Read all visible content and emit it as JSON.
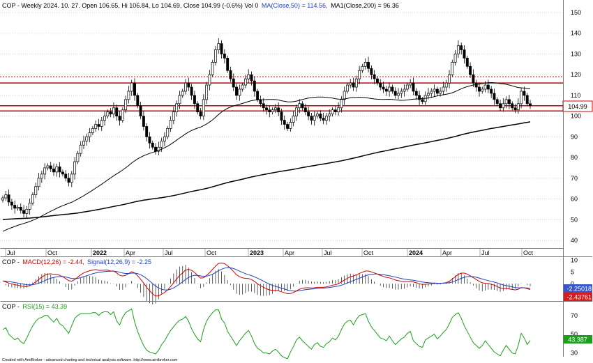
{
  "chart_data": [
    {
      "type": "candlestick",
      "title": "COP - Weekly 2024. 10. 27. Open 106.65, Hi 106.84, Lo 104.69, Close 104.99 (-0.6%) Vol 0",
      "ma50_label": "MA(Close,50) = 114.56,",
      "ma200_label": "MA1(Close,200) = 96.36",
      "last_price_label": "104.99",
      "ylim": [
        36,
        155
      ],
      "y_ticks": [
        "150",
        "140",
        "130",
        "120",
        "110",
        "100",
        "90",
        "80",
        "70",
        "60",
        "50",
        "40"
      ],
      "x_tick_labels": [
        {
          "label": "Jul",
          "bold": false
        },
        {
          "label": "Oct",
          "bold": false
        },
        {
          "label": "2022",
          "bold": true
        },
        {
          "label": "Apr",
          "bold": false
        },
        {
          "label": "Jul",
          "bold": false
        },
        {
          "label": "Oct",
          "bold": false
        },
        {
          "label": "2023",
          "bold": true
        },
        {
          "label": "Apr",
          "bold": false
        },
        {
          "label": "Jul",
          "bold": false
        },
        {
          "label": "Oct",
          "bold": false
        },
        {
          "label": "2024",
          "bold": true
        },
        {
          "label": "Apr",
          "bold": false
        },
        {
          "label": "Jul",
          "bold": false
        },
        {
          "label": "Oct",
          "bold": false
        }
      ],
      "horizontal_lines": [
        {
          "value": 119,
          "color": "#cc0000",
          "style": "dotted"
        },
        {
          "value": 116,
          "color": "#cc0000",
          "style": "solid"
        },
        {
          "value": 105,
          "color": "#cc0000",
          "style": "solid"
        },
        {
          "value": 102.5,
          "color": "#cc0000",
          "style": "solid"
        }
      ],
      "weekly_close": [
        60.5,
        62.0,
        58.5,
        57.0,
        55.5,
        56.0,
        54.5,
        53.0,
        55.0,
        58.0,
        62.0,
        66.0,
        70.0,
        72.0,
        75.0,
        76.0,
        74.5,
        73.0,
        75.5,
        73.0,
        72.0,
        70.0,
        68.0,
        72.0,
        78.0,
        82.0,
        86.0,
        88.0,
        90.0,
        92.0,
        94.0,
        96.0,
        95.0,
        98.0,
        100.0,
        102.0,
        101.0,
        104.0,
        100.0,
        98.0,
        103.0,
        108.0,
        112.0,
        116.0,
        110.0,
        105.0,
        100.0,
        95.0,
        90.0,
        87.0,
        85.0,
        83.0,
        85.0,
        88.0,
        90.0,
        94.0,
        98.0,
        102.0,
        106.0,
        110.0,
        112.0,
        116.0,
        114.0,
        110.0,
        106.0,
        102.0,
        100.0,
        108.0,
        115.0,
        120.0,
        126.0,
        132.0,
        135.0,
        130.0,
        128.0,
        122.0,
        118.0,
        114.0,
        110.0,
        113.0,
        115.0,
        118.0,
        120.0,
        117.0,
        112.0,
        108.0,
        106.0,
        104.0,
        103.0,
        102.0,
        103.0,
        104.0,
        102.0,
        98.0,
        96.0,
        94.0,
        97.0,
        100.0,
        104.0,
        106.0,
        104.0,
        102.0,
        100.0,
        98.0,
        100.0,
        101.0,
        99.0,
        98.0,
        100.0,
        101.0,
        103.0,
        102.0,
        104.0,
        108.0,
        112.0,
        115.0,
        116.0,
        114.0,
        118.0,
        122.0,
        124.0,
        126.0,
        123.0,
        120.0,
        118.0,
        116.0,
        114.0,
        113.0,
        112.0,
        114.0,
        112.0,
        110.0,
        111.0,
        112.0,
        113.0,
        115.0,
        116.0,
        112.0,
        110.0,
        108.0,
        107.0,
        110.0,
        111.0,
        112.0,
        113.0,
        111.0,
        112.0,
        114.0,
        116.0,
        120.0,
        126.0,
        130.0,
        134.0,
        132.0,
        128.0,
        124.0,
        120.0,
        116.0,
        114.0,
        112.0,
        113.0,
        115.0,
        113.0,
        111.0,
        108.0,
        106.0,
        104.0,
        106.0,
        108.0,
        106.0,
        104.0,
        103.0,
        106.0,
        112.0,
        110.0,
        106.0,
        104.99
      ],
      "series": [
        {
          "name": "MA(Close,50)",
          "color": "#000000",
          "last_value": 114.56
        },
        {
          "name": "MA1(Close,200)",
          "color": "#000000",
          "last_value": 96.36
        }
      ]
    },
    {
      "type": "line",
      "panel": "MACD",
      "title_prefix": "COP -",
      "macd_label": "MACD(12,26) = -2.44,",
      "signal_label": "Signal(12,26,9) = -2.25",
      "ylim": [
        -7,
        11
      ],
      "y_ticks": [
        "10",
        "5",
        "0",
        "-5"
      ],
      "macd_last_label": "-2.43761",
      "signal_last_label": "-2.25018",
      "macd_values": [
        1.2,
        0.8,
        0.3,
        0.0,
        -0.4,
        -0.6,
        -0.9,
        -1.2,
        -1.2,
        -0.8,
        -0.1,
        0.8,
        1.8,
        2.8,
        3.6,
        4.1,
        4.2,
        4.0,
        4.0,
        3.6,
        3.0,
        2.2,
        1.3,
        1.1,
        1.8,
        2.8,
        3.8,
        4.6,
        5.1,
        5.5,
        5.8,
        6.0,
        5.7,
        5.7,
        5.8,
        5.8,
        5.4,
        5.4,
        4.6,
        3.6,
        3.3,
        3.6,
        4.3,
        5.1,
        4.6,
        3.4,
        1.9,
        0.3,
        -1.5,
        -3.0,
        -4.3,
        -5.2,
        -5.1,
        -4.4,
        -3.7,
        -2.6,
        -1.2,
        0.4,
        2.0,
        3.5,
        4.6,
        5.8,
        6.1,
        5.7,
        4.8,
        3.5,
        2.4,
        2.5,
        3.5,
        4.7,
        6.1,
        7.5,
        8.6,
        8.8,
        8.5,
        7.6,
        6.5,
        5.2,
        3.8,
        3.0,
        2.5,
        2.3,
        2.2,
        1.8,
        1.0,
        0.0,
        -0.8,
        -1.5,
        -2.1,
        -2.6,
        -2.8,
        -2.8,
        -3.0,
        -3.4,
        -3.8,
        -4.2,
        -4.1,
        -3.7,
        -3.0,
        -2.3,
        -1.9,
        -1.7,
        -1.7,
        -1.8,
        -1.7,
        -1.5,
        -1.5,
        -1.5,
        -1.3,
        -1.0,
        -0.6,
        -0.4,
        0.0,
        0.8,
        1.6,
        2.3,
        3.0,
        3.3,
        3.8,
        4.4,
        4.9,
        5.4,
        5.4,
        5.0,
        4.6,
        4.1,
        3.6,
        3.1,
        2.7,
        2.5,
        2.1,
        1.6,
        1.3,
        1.1,
        0.9,
        1.0,
        1.1,
        0.8,
        0.4,
        0.0,
        -0.3,
        -0.2,
        -0.1,
        0.0,
        0.2,
        0.1,
        0.1,
        0.3,
        0.5,
        1.0,
        2.0,
        3.0,
        4.0,
        4.5,
        4.5,
        4.1,
        3.4,
        2.6,
        1.8,
        1.0,
        0.4,
        0.2,
        0.1,
        -0.2,
        -0.6,
        -1.2,
        -1.8,
        -2.0,
        -2.0,
        -2.2,
        -2.4,
        -2.6,
        -2.3,
        -1.6,
        -1.7,
        -2.1,
        -2.44
      ]
    },
    {
      "type": "line",
      "panel": "RSI",
      "title_prefix": "COP -",
      "rsi_label": "RSI(15) = 43.39",
      "ylim": [
        26,
        84
      ],
      "y_ticks": [
        "70",
        "50",
        "30"
      ],
      "last_label": "43.387",
      "rsi_values": [
        55,
        57,
        50,
        47,
        44,
        46,
        42,
        40,
        46,
        53,
        59,
        64,
        67,
        68,
        70,
        70,
        66,
        63,
        67,
        61,
        59,
        55,
        51,
        59,
        67,
        70,
        72,
        72,
        72,
        72,
        73,
        73,
        70,
        73,
        74,
        74,
        71,
        74,
        64,
        60,
        68,
        73,
        75,
        77,
        63,
        53,
        45,
        38,
        33,
        31,
        30,
        29,
        33,
        39,
        43,
        49,
        54,
        58,
        62,
        65,
        66,
        69,
        64,
        56,
        50,
        45,
        42,
        55,
        64,
        69,
        73,
        76,
        76,
        66,
        62,
        53,
        48,
        43,
        38,
        43,
        47,
        51,
        54,
        48,
        40,
        35,
        33,
        30,
        30,
        29,
        32,
        34,
        31,
        27,
        25,
        24,
        31,
        37,
        44,
        47,
        43,
        40,
        37,
        34,
        39,
        41,
        37,
        36,
        40,
        42,
        46,
        44,
        48,
        55,
        61,
        64,
        65,
        60,
        66,
        70,
        71,
        72,
        64,
        58,
        54,
        50,
        46,
        45,
        43,
        48,
        43,
        39,
        42,
        45,
        47,
        51,
        53,
        43,
        40,
        37,
        36,
        44,
        46,
        48,
        50,
        45,
        48,
        52,
        55,
        61,
        68,
        71,
        73,
        67,
        59,
        53,
        47,
        41,
        38,
        35,
        38,
        43,
        39,
        35,
        31,
        29,
        27,
        33,
        38,
        34,
        30,
        29,
        38,
        51,
        46,
        39,
        43.39
      ]
    }
  ],
  "footer": "Created with AmiBroker - advanced charting and technical analysis software. http://www.amibroker.com"
}
